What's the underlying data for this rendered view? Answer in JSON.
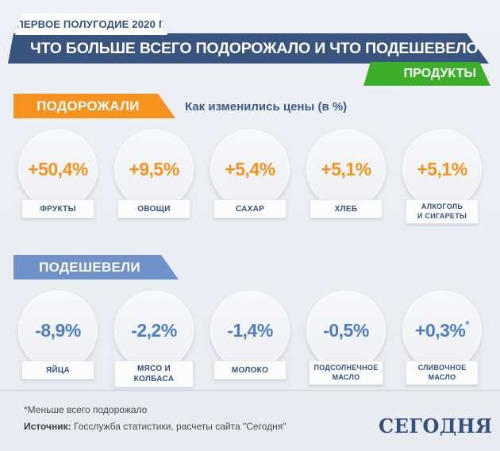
{
  "header": {
    "period_badge": "ПЕРВОЕ ПОЛУГОДИЕ 2020 Г.",
    "title": "ЧТО БОЛЬШЕ ВСЕГО ПОДОРОЖАЛО И ЧТО ПОДЕШЕВЕЛО",
    "category_badge": "ПРОДУКТЫ",
    "banner_color": "#3a5480",
    "category_color": "#3cae29"
  },
  "subtitle": "Как изменились цены (в %)",
  "sections": [
    {
      "label": "ПОДОРОЖАЛИ",
      "badge_color": "#f6921e",
      "value_color": "#f6921e",
      "items": [
        {
          "value": "+50,4%",
          "label": "ФРУКТЫ"
        },
        {
          "value": "+9,5%",
          "label": "ОВОЩИ"
        },
        {
          "value": "+5,4%",
          "label": "САХАР"
        },
        {
          "value": "+5,1%",
          "label": "ХЛЕБ"
        },
        {
          "value": "+5,1%",
          "label": "АЛКОГОЛЬ\nИ СИГАРЕТЫ"
        }
      ]
    },
    {
      "label": "ПОДЕШЕВЕЛИ",
      "badge_color": "#6f93c9",
      "value_color": "#4d7ec3",
      "items": [
        {
          "value": "-8,9%",
          "label": "ЯЙЦА"
        },
        {
          "value": "-2,2%",
          "label": "МЯСО И КОЛБАСА"
        },
        {
          "value": "-1,4%",
          "label": "МОЛОКО"
        },
        {
          "value": "-0,5%",
          "label": "ПОДСОЛНЕЧНОЕ\nМАСЛО"
        },
        {
          "value": "+0,3%",
          "asterisk": "*",
          "label": "СЛИВОЧНОЕ\nМАСЛО"
        }
      ]
    }
  ],
  "footer": {
    "footnote": "*Меньше всего подорожало",
    "source_label": "Источник:",
    "source_text": " Госслужба статистики, расчеты сайта \"Сегодня\"",
    "logo": "СЕГОДНЯ"
  },
  "chart_data": {
    "type": "table",
    "title": "Что больше всего подорожало и что подешевело",
    "subtitle": "Как изменились цены (в %)",
    "period": "Первое полугодие 2020 г.",
    "category": "Продукты",
    "groups": [
      {
        "name": "Подорожали",
        "items": [
          {
            "label": "Фрукты",
            "value": 50.4
          },
          {
            "label": "Овощи",
            "value": 9.5
          },
          {
            "label": "Сахар",
            "value": 5.4
          },
          {
            "label": "Хлеб",
            "value": 5.1
          },
          {
            "label": "Алкоголь и сигареты",
            "value": 5.1
          }
        ]
      },
      {
        "name": "Подешевели",
        "items": [
          {
            "label": "Яйца",
            "value": -8.9
          },
          {
            "label": "Мясо и колбаса",
            "value": -2.2
          },
          {
            "label": "Молоко",
            "value": -1.4
          },
          {
            "label": "Подсолнечное масло",
            "value": -0.5
          },
          {
            "label": "Сливочное масло",
            "value": 0.3,
            "note": "Меньше всего подорожало"
          }
        ]
      }
    ],
    "source": "Госслужба статистики, расчеты сайта \"Сегодня\""
  }
}
